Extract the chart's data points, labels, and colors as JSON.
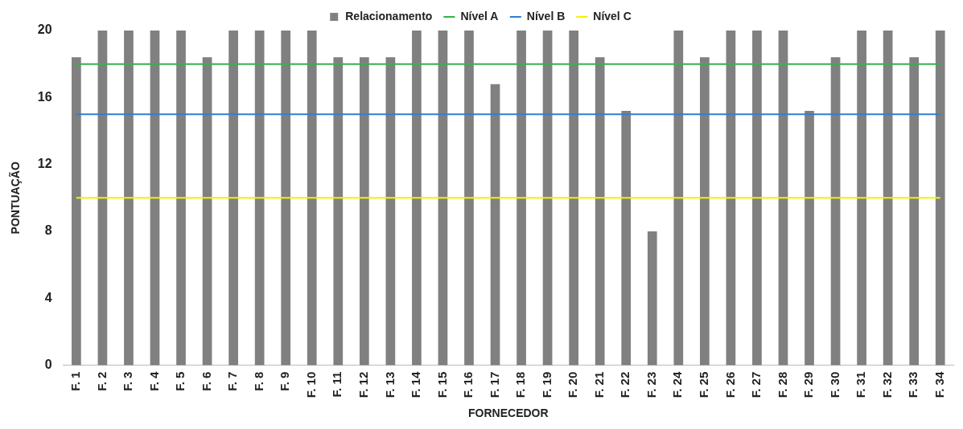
{
  "chart_data": {
    "type": "bar",
    "xlabel": "FORNECEDOR",
    "ylabel": "PONTUAÇÃO",
    "categories": [
      "F. 1",
      "F. 2",
      "F. 3",
      "F. 4",
      "F. 5",
      "F. 6",
      "F. 7",
      "F. 8",
      "F. 9",
      "F. 10",
      "F. 11",
      "F. 12",
      "F. 13",
      "F. 14",
      "F. 15",
      "F. 16",
      "F. 17",
      "F. 18",
      "F. 19",
      "F. 20",
      "F. 21",
      "F. 22",
      "F. 23",
      "F. 24",
      "F. 25",
      "F. 26",
      "F. 27",
      "F. 28",
      "F. 29",
      "F. 30",
      "F. 31",
      "F. 32",
      "F. 33",
      "F. 34"
    ],
    "series": [
      {
        "name": "Relacionamento",
        "color": "#808080",
        "values": [
          18.4,
          20,
          20,
          20,
          20,
          18.4,
          20,
          20,
          20,
          20,
          18.4,
          18.4,
          18.4,
          20,
          20,
          20,
          16.8,
          20,
          20,
          20,
          18.4,
          15.2,
          8,
          20,
          18.4,
          20,
          20,
          20,
          15.2,
          18.4,
          20,
          20,
          18.4,
          20
        ]
      },
      {
        "name": "Nível A",
        "type": "line",
        "color": "#33b54a",
        "values": [
          18,
          18,
          18,
          18,
          18,
          18,
          18,
          18,
          18,
          18,
          18,
          18,
          18,
          18,
          18,
          18,
          18,
          18,
          18,
          18,
          18,
          18,
          18,
          18,
          18,
          18,
          18,
          18,
          18,
          18,
          18,
          18,
          18,
          18
        ]
      },
      {
        "name": "Nível B",
        "type": "line",
        "color": "#2f7fd3",
        "values": [
          15,
          15,
          15,
          15,
          15,
          15,
          15,
          15,
          15,
          15,
          15,
          15,
          15,
          15,
          15,
          15,
          15,
          15,
          15,
          15,
          15,
          15,
          15,
          15,
          15,
          15,
          15,
          15,
          15,
          15,
          15,
          15,
          15,
          15
        ]
      },
      {
        "name": "Nível C",
        "type": "line",
        "color": "#f2f200",
        "values": [
          10,
          10,
          10,
          10,
          10,
          10,
          10,
          10,
          10,
          10,
          10,
          10,
          10,
          10,
          10,
          10,
          10,
          10,
          10,
          10,
          10,
          10,
          10,
          10,
          10,
          10,
          10,
          10,
          10,
          10,
          10,
          10,
          10,
          10
        ]
      }
    ],
    "ylim": [
      0,
      20
    ],
    "yticks": [
      0,
      4,
      8,
      12,
      16,
      20
    ],
    "grid": false,
    "legend": "top",
    "marker": "none",
    "line_style": "solid"
  }
}
